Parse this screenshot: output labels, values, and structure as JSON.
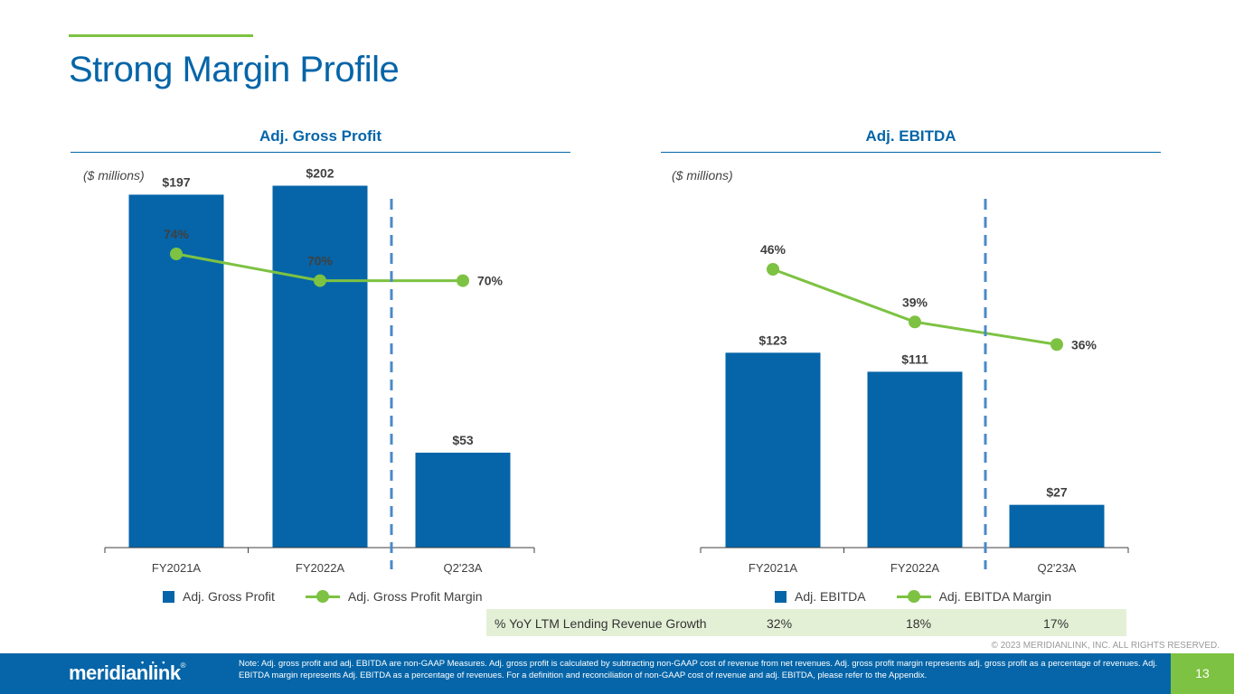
{
  "page": {
    "title": "Strong Margin Profile",
    "units_label": "($ millions)",
    "page_number": "13",
    "copyright": "© 2023 MERIDIANLINK, INC. ALL RIGHTS RESERVED.",
    "footnote": "Note: Adj. gross profit and adj. EBITDA are non-GAAP Measures. Adj. gross profit is calculated by subtracting non-GAAP cost of revenue from net revenues. Adj. gross profit margin represents adj. gross profit as a percentage of revenues. Adj. EBITDA margin represents Adj. EBITDA as a percentage of revenues. For a definition and reconciliation of non-GAAP cost of revenue and adj. EBITDA, please refer to the Appendix.",
    "logo_text": "meridianlink",
    "logo_mark": "®"
  },
  "colors": {
    "bar": "#0565a8",
    "line": "#7dc242",
    "divider": "#4a8ac8",
    "axis": "#404040"
  },
  "growth_row": {
    "label": "% YoY LTM Lending Revenue Growth",
    "values": [
      "32%",
      "18%",
      "17%"
    ]
  },
  "chart_data": [
    {
      "type": "bar",
      "title": "Adj. Gross Profit",
      "categories": [
        "FY2021A",
        "FY2022A",
        "Q2'23A"
      ],
      "series": [
        {
          "name": "Adj. Gross Profit",
          "kind": "bar",
          "values": [
            197,
            202,
            53
          ],
          "labels": [
            "$197",
            "$202",
            "$53"
          ]
        },
        {
          "name": "Adj. Gross Profit Margin",
          "kind": "line",
          "values": [
            74,
            70,
            70
          ],
          "labels": [
            "74%",
            "70%",
            "70%"
          ]
        }
      ],
      "ylabel": "($ millions)",
      "ylim": [
        0,
        230
      ],
      "legend": "bottom"
    },
    {
      "type": "bar",
      "title": "Adj. EBITDA",
      "categories": [
        "FY2021A",
        "FY2022A",
        "Q2'23A"
      ],
      "series": [
        {
          "name": "Adj. EBITDA",
          "kind": "bar",
          "values": [
            123,
            111,
            27
          ],
          "labels": [
            "$123",
            "$111",
            "$27"
          ]
        },
        {
          "name": "Adj. EBITDA Margin",
          "kind": "line",
          "values": [
            46,
            39,
            36
          ],
          "labels": [
            "46%",
            "39%",
            "36%"
          ]
        }
      ],
      "ylabel": "($ millions)",
      "ylim": [
        0,
        300
      ],
      "legend": "bottom"
    }
  ]
}
